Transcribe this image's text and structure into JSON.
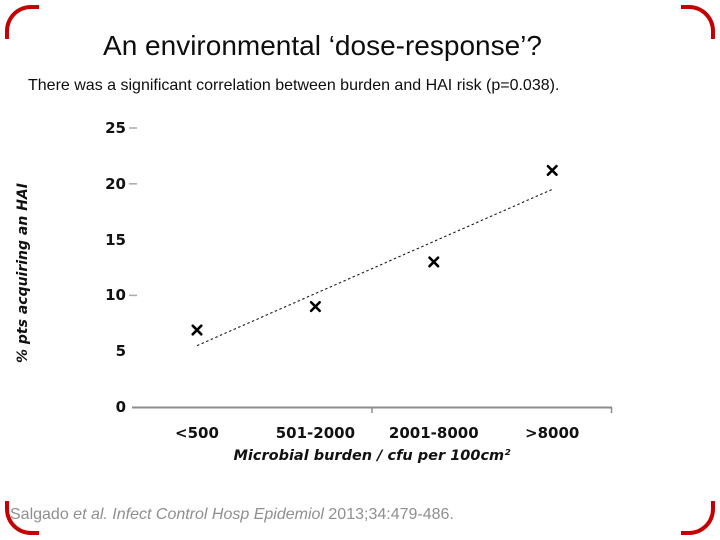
{
  "slide": {
    "title": "An environmental ‘dose-response’?",
    "subtitle": "There was a significant correlation between burden and HAI risk (p=0.038).",
    "citation": {
      "prefix": "Salgado ",
      "italic": "et al. Infect Control Hosp Epidemiol ",
      "suffix": "2013;34:479-486."
    },
    "accent_color": "#c40000"
  },
  "chart_data": {
    "type": "scatter",
    "categories": [
      "<500",
      "501-2000",
      "2001-8000",
      ">8000"
    ],
    "series": [
      {
        "name": "% pts acquiring an HAI",
        "values": [
          6.9,
          9.0,
          13.0,
          21.2
        ]
      }
    ],
    "trendline": {
      "start_value": 5.5,
      "end_value": 19.5,
      "style": "dotted"
    },
    "title": "",
    "xlabel": "Microbial burden / cfu per 100cm²",
    "ylabel": "% pts acquiring an HAI",
    "ylim": [
      0,
      25
    ],
    "yticks": [
      0,
      5,
      10,
      15,
      20,
      25
    ],
    "yticks_with_dash": [
      25,
      20,
      10
    ],
    "marker": "x",
    "marker_color": "#000000",
    "trendline_color": "#1a1a1a",
    "axis_color": "#8c8c8c",
    "grid": false,
    "legend": "none"
  }
}
